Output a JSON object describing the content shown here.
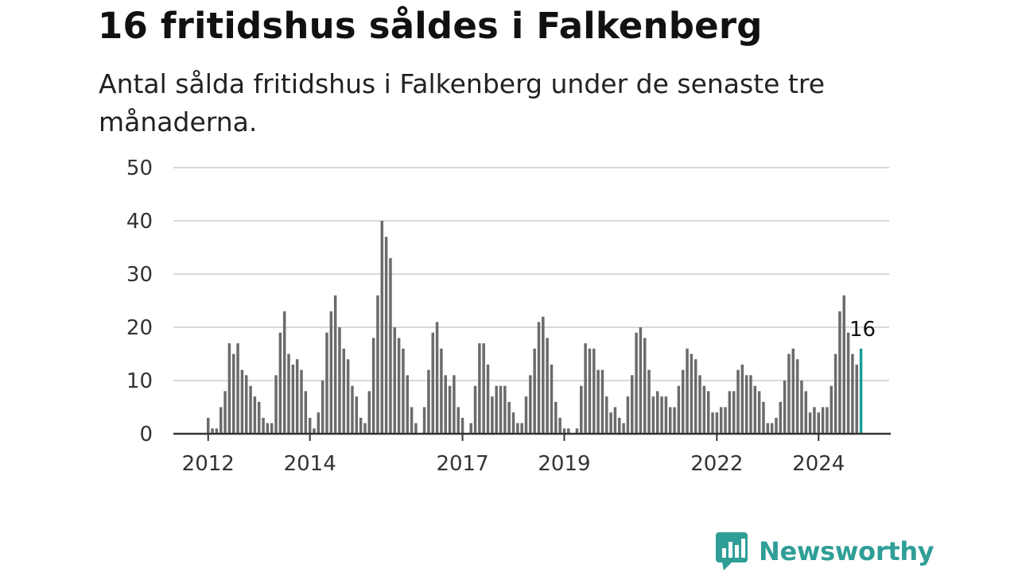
{
  "title": "16 fritidshus såldes i Falkenberg",
  "subtitle": "Antal sålda fritidshus i Falkenberg under de senaste tre månaderna.",
  "brand": {
    "name": "Newsworthy",
    "icon": "bar-chart-speech-bubble-icon",
    "color": "#2f9e97"
  },
  "colors": {
    "bar": "#6b6b6e",
    "highlight": "#1a9e97",
    "grid": "#d9d9d9",
    "axis": "#333333"
  },
  "chart_data": {
    "type": "bar",
    "title": "16 fritidshus såldes i Falkenberg",
    "xlabel": "",
    "ylabel": "",
    "ylim": [
      0,
      50
    ],
    "yticks": [
      0,
      10,
      20,
      30,
      40,
      50
    ],
    "xtick_labels": [
      "2012",
      "2014",
      "2017",
      "2019",
      "2022",
      "2024"
    ],
    "grid": true,
    "highlight_label": "16",
    "values": [
      3,
      1,
      1,
      5,
      8,
      17,
      15,
      17,
      12,
      11,
      9,
      7,
      6,
      3,
      2,
      2,
      11,
      19,
      23,
      15,
      13,
      14,
      12,
      8,
      3,
      1,
      4,
      10,
      19,
      23,
      26,
      20,
      16,
      14,
      9,
      7,
      3,
      2,
      8,
      18,
      26,
      40,
      37,
      33,
      20,
      18,
      16,
      11,
      5,
      2,
      0,
      5,
      12,
      19,
      21,
      16,
      11,
      9,
      11,
      5,
      3,
      0,
      2,
      9,
      17,
      17,
      13,
      7,
      9,
      9,
      9,
      6,
      4,
      2,
      2,
      7,
      11,
      16,
      21,
      22,
      18,
      13,
      6,
      3,
      1,
      1,
      0,
      1,
      9,
      17,
      16,
      16,
      12,
      12,
      7,
      4,
      5,
      3,
      2,
      7,
      11,
      19,
      20,
      18,
      12,
      7,
      8,
      7,
      7,
      5,
      5,
      9,
      12,
      16,
      15,
      14,
      11,
      9,
      8,
      4,
      4,
      5,
      5,
      8,
      8,
      12,
      13,
      11,
      11,
      9,
      8,
      6,
      2,
      2,
      3,
      6,
      10,
      15,
      16,
      14,
      10,
      8,
      4,
      5,
      4,
      5,
      5,
      9,
      15,
      23,
      26,
      19,
      15,
      13,
      16
    ]
  }
}
